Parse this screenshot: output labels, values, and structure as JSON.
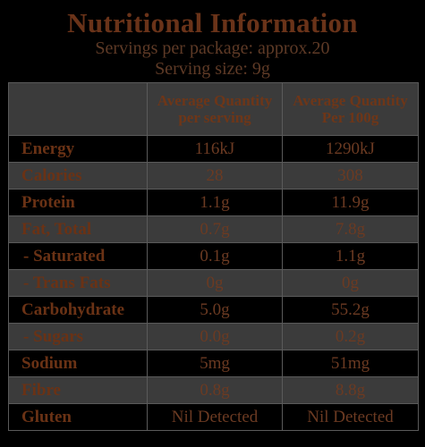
{
  "header": {
    "title": "Nutritional Information",
    "servings_per_package": "Servings per package: approx.20",
    "serving_size": "Serving size: 9g"
  },
  "table": {
    "columns": [
      "",
      "Average Quantity per serving",
      "Average Quantity Per 100g"
    ],
    "rows": [
      {
        "label": "Energy",
        "per_serving": "116kJ",
        "per_100g": "1290kJ"
      },
      {
        "label": "Calories",
        "per_serving": "28",
        "per_100g": "308"
      },
      {
        "label": "Protein",
        "per_serving": "1.1g",
        "per_100g": "11.9g"
      },
      {
        "label": "Fat, Total",
        "per_serving": "0.7g",
        "per_100g": "7.8g"
      },
      {
        "label": "- Saturated",
        "per_serving": "0.1g",
        "per_100g": "1.1g"
      },
      {
        "label": "- Trans Fats",
        "per_serving": "0g",
        "per_100g": "0g"
      },
      {
        "label": "Carbohydrate",
        "per_serving": "5.0g",
        "per_100g": "55.2g"
      },
      {
        "label": "- Sugars",
        "per_serving": "0.0g",
        "per_100g": "0.2g"
      },
      {
        "label": "Sodium",
        "per_serving": "5mg",
        "per_100g": "51mg"
      },
      {
        "label": "Fibre",
        "per_serving": "0.8g",
        "per_100g": "8.8g"
      },
      {
        "label": "Gluten",
        "per_serving": "Nil Detected",
        "per_100g": "Nil Detected"
      }
    ]
  },
  "colors": {
    "background": "#000000",
    "text_brown": "#6b3418",
    "shaded_row": "#3b3b3b",
    "grid_line": "#5a5a5a"
  }
}
